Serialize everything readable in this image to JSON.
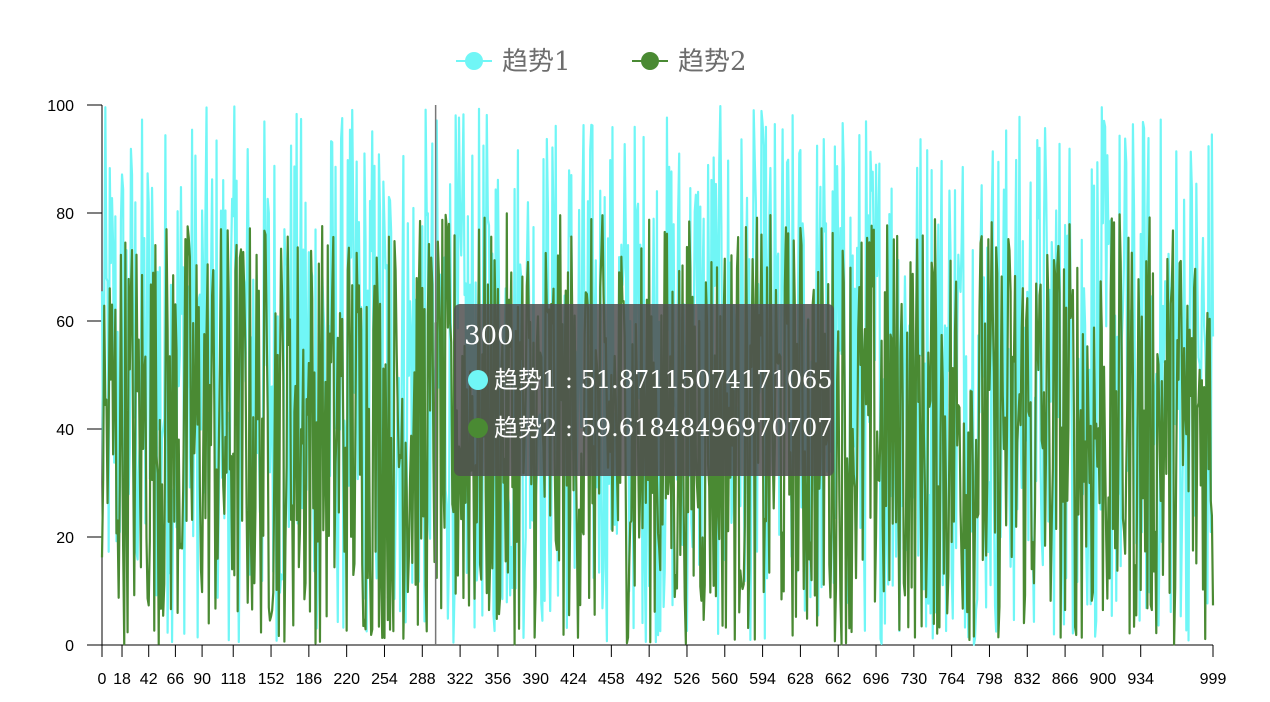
{
  "chart_data": {
    "type": "line",
    "title": "",
    "xlabel": "",
    "ylabel": "",
    "x_range": [
      0,
      999
    ],
    "ylim": [
      0,
      100
    ],
    "y_ticks": [
      0,
      20,
      40,
      60,
      80,
      100
    ],
    "x_tick_labels": [
      0,
      18,
      42,
      66,
      90,
      118,
      152,
      186,
      220,
      254,
      288,
      322,
      356,
      390,
      424,
      458,
      492,
      526,
      560,
      594,
      628,
      662,
      696,
      730,
      764,
      798,
      832,
      866,
      900,
      934,
      999
    ],
    "grid": false,
    "legend_position": "top-center",
    "series": [
      {
        "name": "趋势1",
        "color": "#70f6f6",
        "range": [
          0,
          100
        ],
        "description": "1000 random values between 0 and 100"
      },
      {
        "name": "趋势2",
        "color": "#4a8a33",
        "range": [
          0,
          80
        ],
        "description": "1000 random values between 0 and 80"
      }
    ],
    "hover_index": 300,
    "tooltip": {
      "title": "300",
      "rows": [
        {
          "label": "趋势1 : 51.87115074171065",
          "color": "#70f6f6"
        },
        {
          "label": "趋势2 : 59.61848496970707",
          "color": "#4a8a33"
        }
      ]
    }
  }
}
